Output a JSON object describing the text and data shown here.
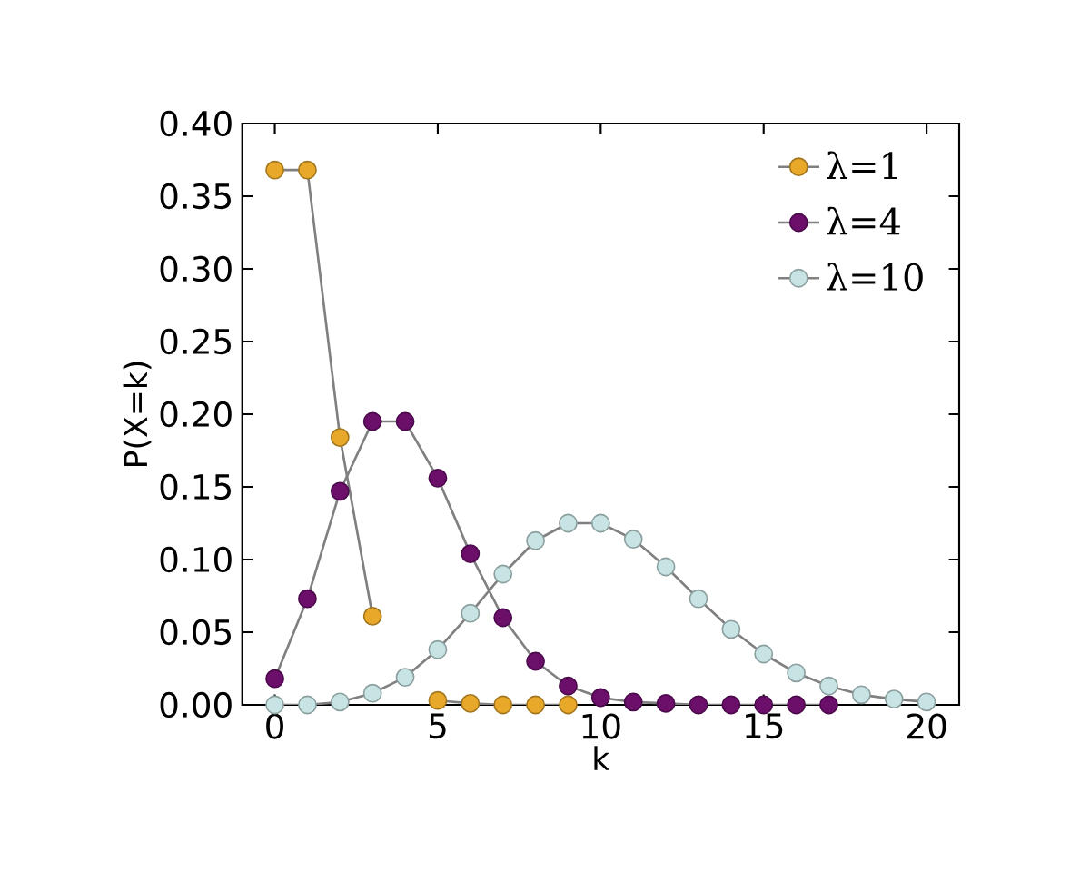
{
  "chart_data": {
    "type": "line",
    "xlabel": "k",
    "ylabel": "P(X=k)",
    "x": [
      0,
      1,
      2,
      3,
      4,
      5,
      6,
      7,
      8,
      9,
      10,
      11,
      12,
      13,
      14,
      15,
      16,
      17,
      18,
      19,
      20
    ],
    "series": [
      {
        "name": "λ=1",
        "color": "#e8a92a",
        "values": [
          0.368,
          0.368,
          0.184,
          0.061,
          null,
          0.003,
          0.001,
          0.0,
          0.0,
          0.0,
          null,
          null,
          null,
          null,
          null,
          null,
          null,
          null,
          null,
          null,
          null
        ]
      },
      {
        "name": "λ=4",
        "color": "#6b0f6b",
        "values": [
          0.018,
          0.073,
          0.147,
          0.195,
          0.195,
          0.156,
          0.104,
          0.06,
          0.03,
          0.013,
          0.005,
          0.002,
          0.001,
          0.0,
          0.0,
          0.0,
          0.0,
          0.0,
          null,
          null,
          null
        ]
      },
      {
        "name": "λ=10",
        "color": "#c7e3e3",
        "values": [
          0.0,
          0.0,
          0.002,
          0.008,
          0.019,
          0.038,
          0.063,
          0.09,
          0.113,
          0.125,
          0.125,
          0.114,
          0.095,
          0.073,
          0.052,
          0.035,
          0.022,
          0.013,
          0.007,
          0.004,
          0.002
        ]
      }
    ],
    "xlim": [
      -1,
      21
    ],
    "xticks": [
      0,
      5,
      10,
      15,
      20
    ],
    "ylim": [
      0,
      0.4
    ],
    "yticks": [
      {
        "value": 0,
        "label": "0.00"
      },
      {
        "value": 0.05,
        "label": "0.05"
      },
      {
        "value": 0.1,
        "label": "0.10"
      },
      {
        "value": 0.15,
        "label": "0.15"
      },
      {
        "value": 0.2,
        "label": "0.20"
      },
      {
        "value": 0.25,
        "label": "0.25"
      },
      {
        "value": 0.3,
        "label": "0.30"
      },
      {
        "value": 0.35,
        "label": "0.35"
      },
      {
        "value": 0.4,
        "label": "0.40"
      }
    ],
    "legend": "top right",
    "marker": "circle",
    "line_style": "solid",
    "grid": false
  }
}
